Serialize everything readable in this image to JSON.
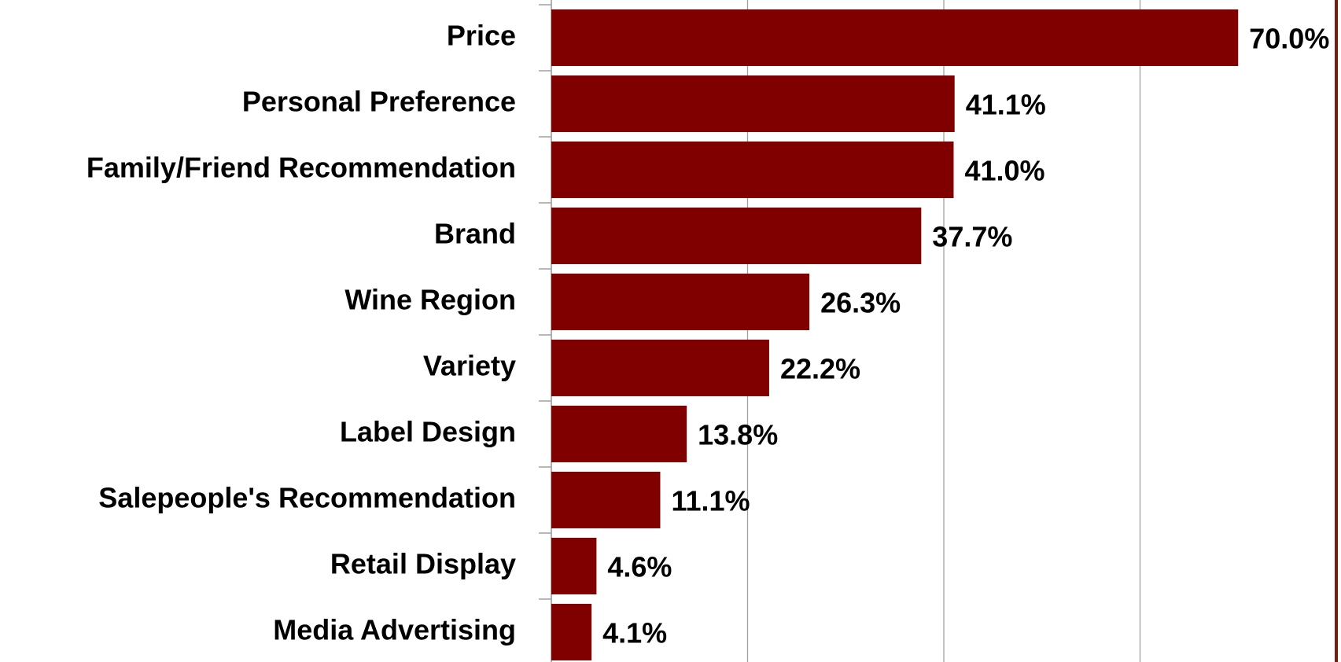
{
  "chart_data": {
    "type": "bar",
    "orientation": "horizontal",
    "categories": [
      "Price",
      "Personal Preference",
      "Family/Friend Recommendation",
      "Brand",
      "Wine Region",
      "Variety",
      "Label Design",
      "Salepeople's Recommendation",
      "Retail Display",
      "Media Advertising"
    ],
    "values": [
      70.0,
      41.1,
      41.0,
      37.7,
      26.3,
      22.2,
      13.8,
      11.1,
      4.6,
      4.1
    ],
    "value_labels": [
      "70.0%",
      "41.1%",
      "41.0%",
      "37.7%",
      "26.3%",
      "22.2%",
      "13.8%",
      "11.1%",
      "4.6%",
      "4.1%"
    ],
    "color": "#800000",
    "xlim": [
      0,
      80
    ],
    "xticks": [
      0,
      20,
      40,
      60,
      80
    ],
    "grid": true
  }
}
